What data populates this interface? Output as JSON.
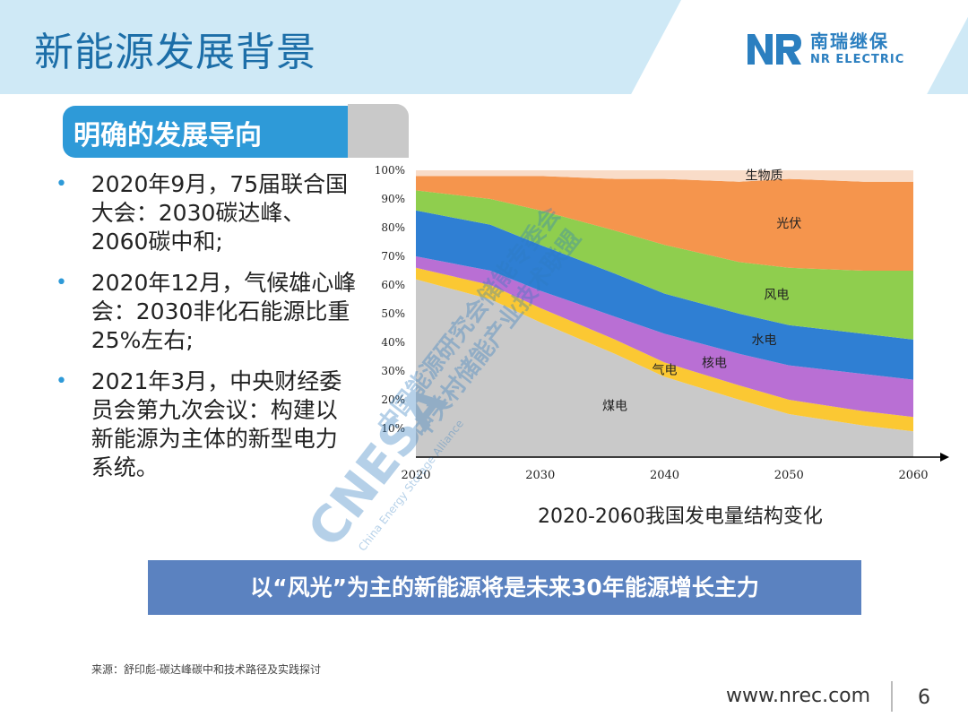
{
  "header": {
    "title": "新能源发展背景",
    "logo_cn": "南瑞继保",
    "logo_en": "NR ELECTRIC"
  },
  "section": {
    "label": "明确的发展导向"
  },
  "bullets": [
    "2020年9月，75届联合国大会：2030碳达峰、2060碳中和;",
    "2020年12月，气候雄心峰会：2030非化石能源比重25%左右;",
    "2021年3月，中央财经委员会第九次会议：构建以新能源为主体的新型电力系统。"
  ],
  "chart_data": {
    "type": "area",
    "stacked": true,
    "x": [
      2020,
      2026,
      2030,
      2036,
      2040,
      2046,
      2050,
      2056,
      2060
    ],
    "xticks": [
      "2020",
      "2030",
      "2040",
      "2050",
      "2060"
    ],
    "yticks": [
      "10%",
      "20%",
      "30%",
      "40%",
      "50%",
      "60%",
      "70%",
      "80%",
      "90%",
      "100%"
    ],
    "ylim": [
      0,
      100
    ],
    "series": [
      {
        "name": "煤电",
        "color": "#c9c9c9",
        "values": [
          62,
          55,
          47,
          36,
          28,
          20,
          15,
          11,
          9
        ]
      },
      {
        "name": "气电",
        "color": "#fbc833",
        "values": [
          4,
          5,
          5,
          5,
          5,
          5,
          5,
          5,
          5
        ]
      },
      {
        "name": "核电",
        "color": "#b96fd4",
        "values": [
          4,
          5,
          6,
          8,
          10,
          11,
          12,
          13,
          13
        ]
      },
      {
        "name": "水电",
        "color": "#2f7fd3",
        "values": [
          16,
          16,
          16,
          15,
          14,
          14,
          14,
          14,
          14
        ]
      },
      {
        "name": "风电",
        "color": "#8fce4e",
        "values": [
          7,
          9,
          12,
          15,
          17,
          18,
          20,
          22,
          24
        ]
      },
      {
        "name": "光伏",
        "color": "#f5954d",
        "values": [
          5,
          8,
          12,
          18,
          23,
          28,
          31,
          31,
          31
        ]
      },
      {
        "name": "生物质",
        "color": "#f9dcc8",
        "values": [
          2,
          2,
          2,
          3,
          3,
          4,
          3,
          4,
          4
        ]
      }
    ],
    "labels": [
      "生物质",
      "光伏",
      "风电",
      "水电",
      "核电",
      "气电",
      "煤电"
    ],
    "caption": "2020-2060我国发电量结构变化"
  },
  "banner": {
    "text": "以“风光”为主的新能源将是未来30年能源增长主力"
  },
  "source": "来源：舒印彪-碳达峰碳中和技术路径及实践探讨",
  "footer": {
    "url": "www.nrec.com",
    "page": "6"
  },
  "watermark": {
    "cn_line1": "中国能源研究会储能专委会",
    "cn_line2": "中关村储能产业技术联盟",
    "brand": "CNESA",
    "brand_en": "China Energy Storage Alliance"
  }
}
